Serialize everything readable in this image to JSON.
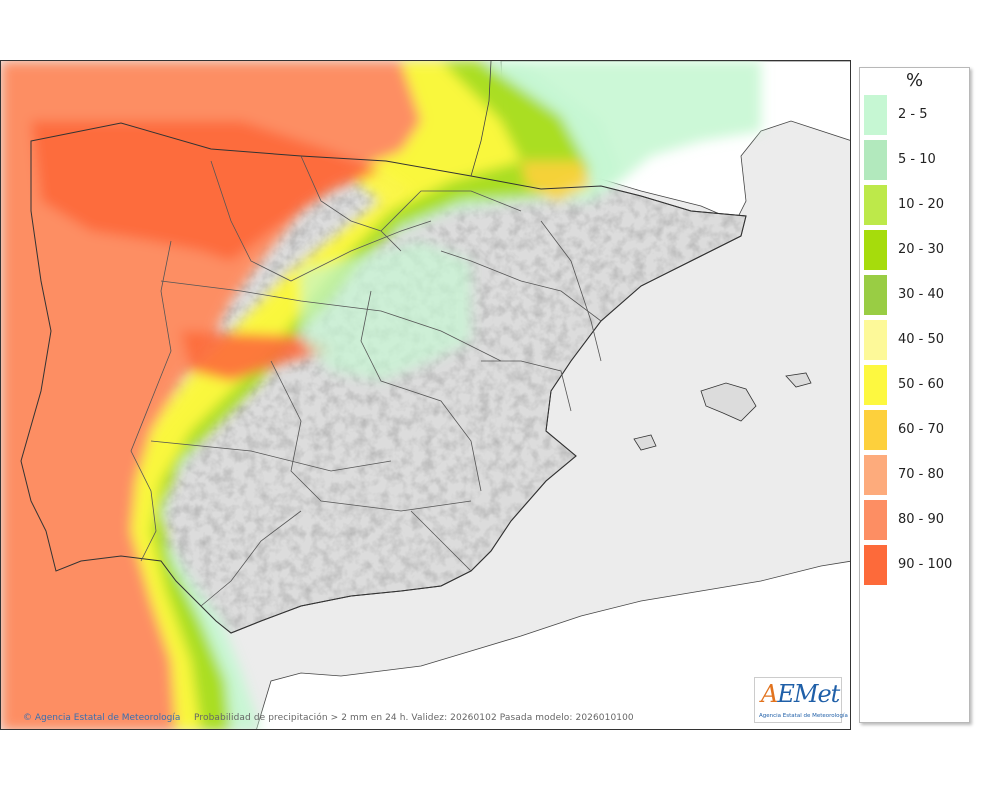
{
  "map": {
    "credit": "Agencia Estatal de Meteorología",
    "caption": "Probabilidad de precipitación > 2 mm en 24 h. Validez: 20260102 Pasada modelo: 2026010100",
    "logo": {
      "text": "AEMet",
      "subtitle": "Agencia Estatal de Meteorología"
    }
  },
  "legend": {
    "title": "%",
    "items": [
      {
        "label": "2 - 5",
        "color": "#c6f7d3"
      },
      {
        "label": "5 - 10",
        "color": "#b2e9bd"
      },
      {
        "label": "10 - 20",
        "color": "#bde94a"
      },
      {
        "label": "20 - 30",
        "color": "#a6dc0c"
      },
      {
        "label": "30 - 40",
        "color": "#99cd44"
      },
      {
        "label": "40 - 50",
        "color": "#fdf999"
      },
      {
        "label": "50 - 60",
        "color": "#fdf840"
      },
      {
        "label": "60 - 70",
        "color": "#fdd03c"
      },
      {
        "label": "70 - 80",
        "color": "#fdab7c"
      },
      {
        "label": "80 - 90",
        "color": "#fd8e63"
      },
      {
        "label": "90 - 100",
        "color": "#fd6a3a"
      }
    ]
  }
}
